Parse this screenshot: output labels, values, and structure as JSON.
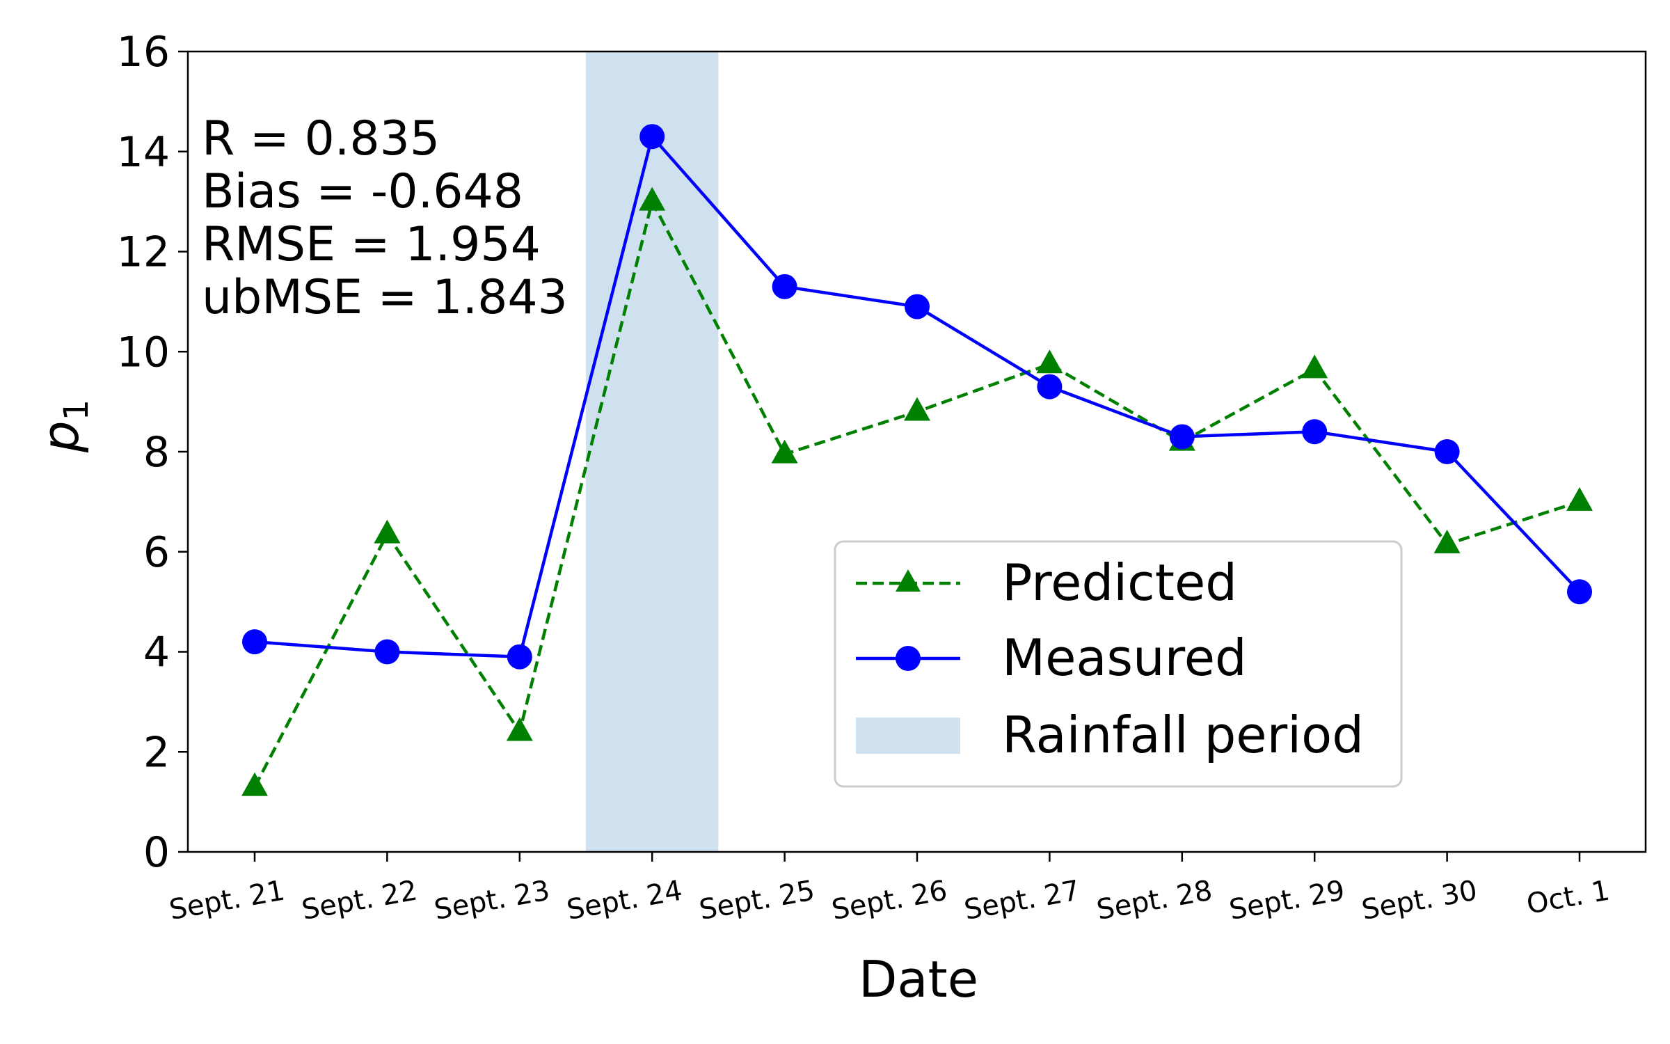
{
  "chart_data": {
    "type": "line",
    "categories": [
      "Sept. 21",
      "Sept. 22",
      "Sept. 23",
      "Sept. 24",
      "Sept. 25",
      "Sept. 26",
      "Sept. 27",
      "Sept. 28",
      "Sept. 29",
      "Sept. 30",
      "Oct. 1"
    ],
    "series": [
      {
        "name": "Predicted",
        "color": "#008000",
        "style": "dashed",
        "marker": "triangle",
        "values": [
          1.3,
          6.35,
          2.4,
          13.0,
          7.95,
          8.8,
          9.75,
          8.2,
          9.65,
          6.15,
          7.0
        ]
      },
      {
        "name": "Measured",
        "color": "#0000ff",
        "style": "solid",
        "marker": "circle",
        "values": [
          4.2,
          4.0,
          3.9,
          14.3,
          11.3,
          10.9,
          9.3,
          8.3,
          8.4,
          8.0,
          5.2
        ]
      }
    ],
    "shaded_region": {
      "label": "Rainfall period",
      "color": "#cfe1ef",
      "from_index": 2.5,
      "to_index": 3.5
    },
    "xlabel": "Date",
    "ylabel": "p",
    "ylabel_subscript": "1",
    "ylim": [
      0,
      16
    ],
    "yticks": [
      0,
      2,
      4,
      6,
      8,
      10,
      12,
      14,
      16
    ],
    "grid": false,
    "legend_position": "lower-right",
    "annotations": [
      "R = 0.835",
      "Bias = -0.648",
      "RMSE = 1.954",
      "ubMSE = 1.843"
    ]
  }
}
